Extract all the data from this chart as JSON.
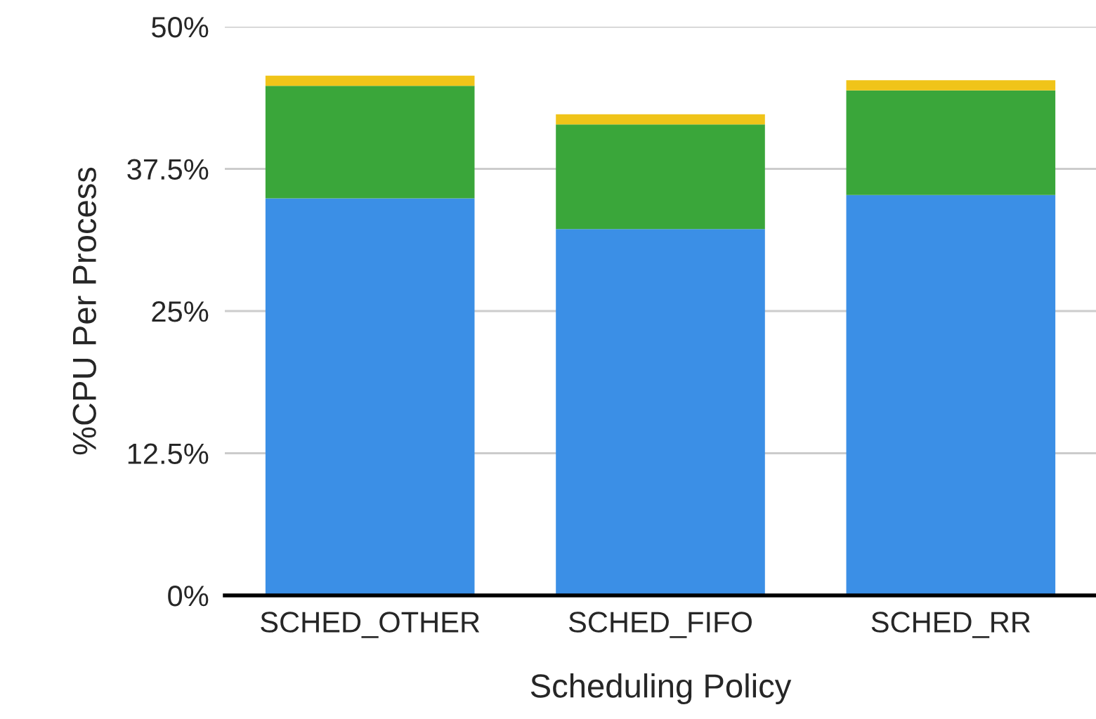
{
  "chart_data": {
    "type": "bar",
    "stacked": true,
    "xlabel": "Scheduling Policy",
    "ylabel": "%CPU Per Process",
    "categories": [
      "SCHED_OTHER",
      "SCHED_FIFO",
      "SCHED_RR"
    ],
    "series": [
      {
        "color": "#3b8fe6",
        "values": [
          34.9,
          32.2,
          35.2
        ]
      },
      {
        "color": "#3aa63a",
        "values": [
          9.9,
          9.2,
          9.2
        ]
      },
      {
        "color": "#f0c419",
        "values": [
          0.9,
          0.9,
          0.9
        ]
      }
    ],
    "ylim": [
      0,
      50
    ],
    "yticks": [
      {
        "value": 0,
        "label": "0%"
      },
      {
        "value": 12.5,
        "label": "12.5%"
      },
      {
        "value": 25,
        "label": "25%"
      },
      {
        "value": 37.5,
        "label": "37.5%"
      },
      {
        "value": 50,
        "label": "50%"
      }
    ],
    "grid": "y"
  }
}
